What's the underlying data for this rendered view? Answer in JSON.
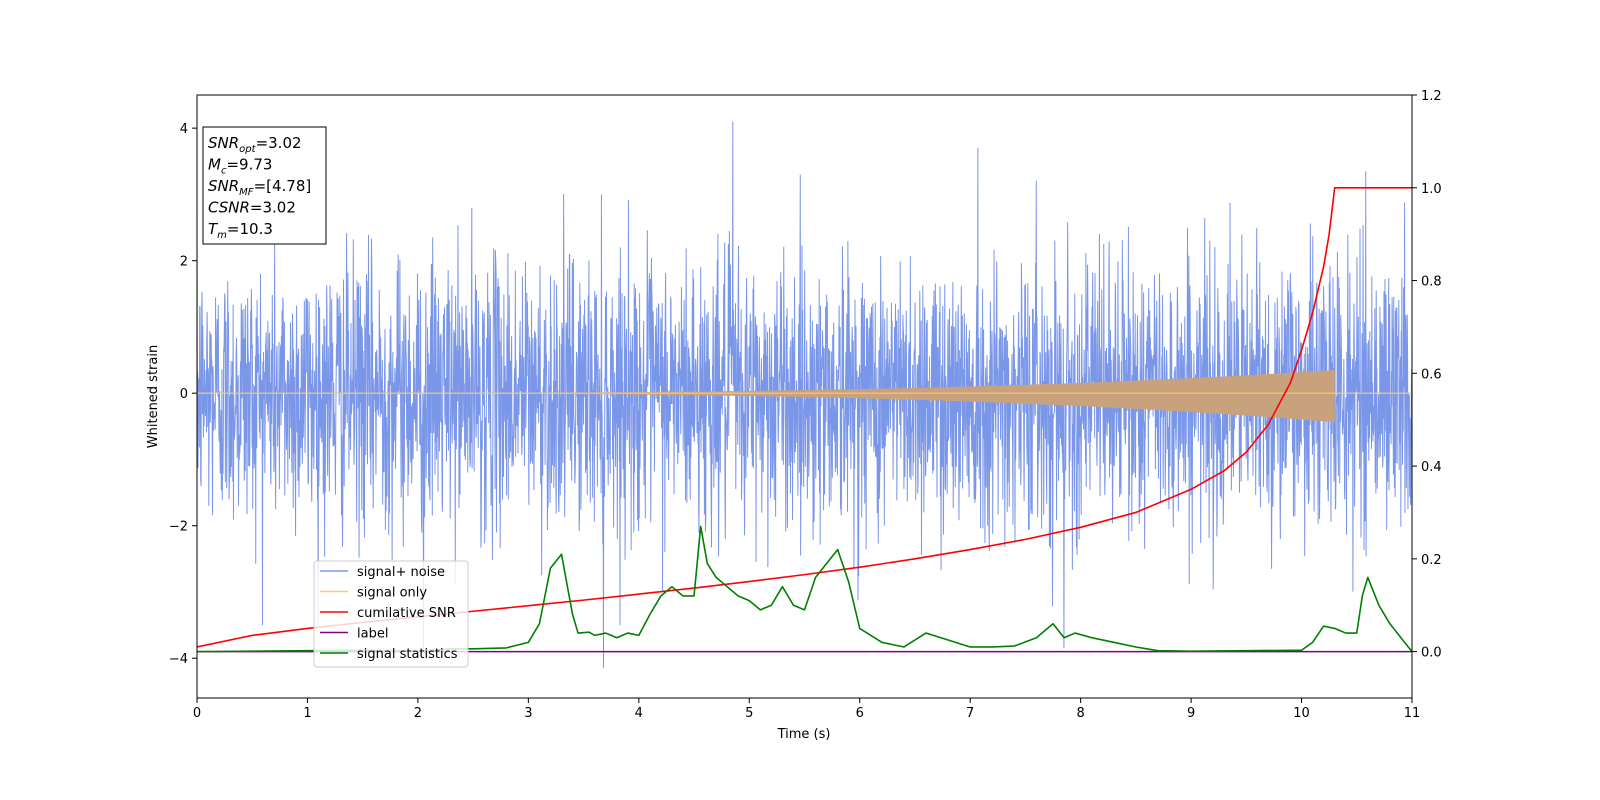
{
  "chart_data": {
    "type": "line",
    "xlabel": "Time (s)",
    "ylabel": "Whitened strain",
    "xlim": [
      0,
      11
    ],
    "ylim_left": [
      -4.6,
      4.5
    ],
    "ylim_right": [
      -0.1,
      1.2
    ],
    "x_ticks": [
      0,
      1,
      2,
      3,
      4,
      5,
      6,
      7,
      8,
      9,
      10,
      11
    ],
    "y_left_ticks": [
      -4,
      -2,
      0,
      2,
      4
    ],
    "y_right_ticks": [
      0.0,
      0.2,
      0.4,
      0.6,
      0.8,
      1.0,
      1.2
    ],
    "y_right_tick_labels": [
      "0.0",
      "0.2",
      "0.4",
      "0.6",
      "0.8",
      "1.0",
      "1.2"
    ],
    "info_box": {
      "lines": [
        {
          "main": "SNR",
          "sub": "opt",
          "rest": "=3.02"
        },
        {
          "main": "M",
          "sub": "c",
          "rest": "=9.73"
        },
        {
          "main": "SNR",
          "sub": "MF",
          "rest": "=[4.78]"
        },
        {
          "main": "CSNR",
          "sub": "",
          "rest": "=3.02"
        },
        {
          "main": "T",
          "sub": "m",
          "rest": "=10.3"
        }
      ]
    },
    "series": [
      {
        "name": "signal+ noise",
        "color": "#7a96e8",
        "axis": "left",
        "kind": "noise",
        "std": 1.0,
        "x_range": [
          0,
          11
        ],
        "peak_samples": [
          [
            4.85,
            4.1
          ],
          [
            7.07,
            3.7
          ],
          [
            3.68,
            -4.15
          ],
          [
            2.05,
            -3.9
          ],
          [
            7.85,
            -3.85
          ],
          [
            10.58,
            3.35
          ]
        ]
      },
      {
        "name": "signal only",
        "color": "#ffc875",
        "axis": "left",
        "kind": "chirp",
        "x_end": 10.3,
        "amplitude_at_end": 0.35,
        "fill_color": "#c8a27c"
      },
      {
        "name": "cumilative SNR",
        "color": "#ff0000",
        "axis": "right",
        "x": [
          0,
          0.5,
          1,
          1.5,
          2,
          2.5,
          3,
          3.5,
          4,
          4.5,
          5,
          5.5,
          6,
          6.5,
          7,
          7.5,
          8,
          8.5,
          9,
          9.3,
          9.5,
          9.7,
          9.9,
          10.0,
          10.1,
          10.2,
          10.25,
          10.3,
          11
        ],
        "y": [
          0.01,
          0.035,
          0.05,
          0.063,
          0.075,
          0.087,
          0.099,
          0.111,
          0.124,
          0.137,
          0.151,
          0.166,
          0.182,
          0.2,
          0.22,
          0.242,
          0.268,
          0.3,
          0.35,
          0.39,
          0.43,
          0.49,
          0.58,
          0.65,
          0.73,
          0.83,
          0.9,
          1.0,
          1.0
        ]
      },
      {
        "name": "label",
        "color": "#800080",
        "axis": "right",
        "x": [
          0,
          11
        ],
        "y": [
          0,
          0
        ]
      },
      {
        "name": "signal statistics",
        "color": "#008000",
        "axis": "right",
        "x": [
          0,
          0.5,
          1,
          1.5,
          2,
          2.3,
          2.5,
          2.8,
          3.0,
          3.1,
          3.2,
          3.3,
          3.4,
          3.45,
          3.55,
          3.6,
          3.7,
          3.8,
          3.9,
          4.0,
          4.1,
          4.2,
          4.3,
          4.4,
          4.5,
          4.56,
          4.62,
          4.7,
          4.8,
          4.9,
          5.0,
          5.1,
          5.2,
          5.3,
          5.4,
          5.5,
          5.6,
          5.7,
          5.8,
          5.9,
          6.0,
          6.2,
          6.4,
          6.6,
          6.8,
          7.0,
          7.2,
          7.4,
          7.6,
          7.75,
          7.85,
          7.95,
          8.1,
          8.3,
          8.5,
          8.7,
          9.0,
          9.5,
          10.0,
          10.1,
          10.2,
          10.3,
          10.4,
          10.5,
          10.55,
          10.6,
          10.7,
          10.8,
          10.9,
          11.0
        ],
        "y": [
          0,
          0.001,
          0.002,
          0.003,
          0.001,
          0.006,
          0.006,
          0.008,
          0.02,
          0.06,
          0.18,
          0.21,
          0.08,
          0.04,
          0.042,
          0.035,
          0.04,
          0.03,
          0.04,
          0.035,
          0.08,
          0.12,
          0.14,
          0.12,
          0.12,
          0.27,
          0.19,
          0.16,
          0.14,
          0.12,
          0.11,
          0.09,
          0.1,
          0.14,
          0.1,
          0.09,
          0.16,
          0.19,
          0.22,
          0.15,
          0.05,
          0.02,
          0.01,
          0.04,
          0.025,
          0.01,
          0.01,
          0.012,
          0.03,
          0.06,
          0.03,
          0.04,
          0.03,
          0.02,
          0.01,
          0.002,
          0.001,
          0.002,
          0.003,
          0.02,
          0.055,
          0.05,
          0.04,
          0.04,
          0.12,
          0.16,
          0.1,
          0.06,
          0.03,
          0.0
        ]
      }
    ],
    "legend": {
      "position": "lower-left"
    },
    "grid": false
  }
}
